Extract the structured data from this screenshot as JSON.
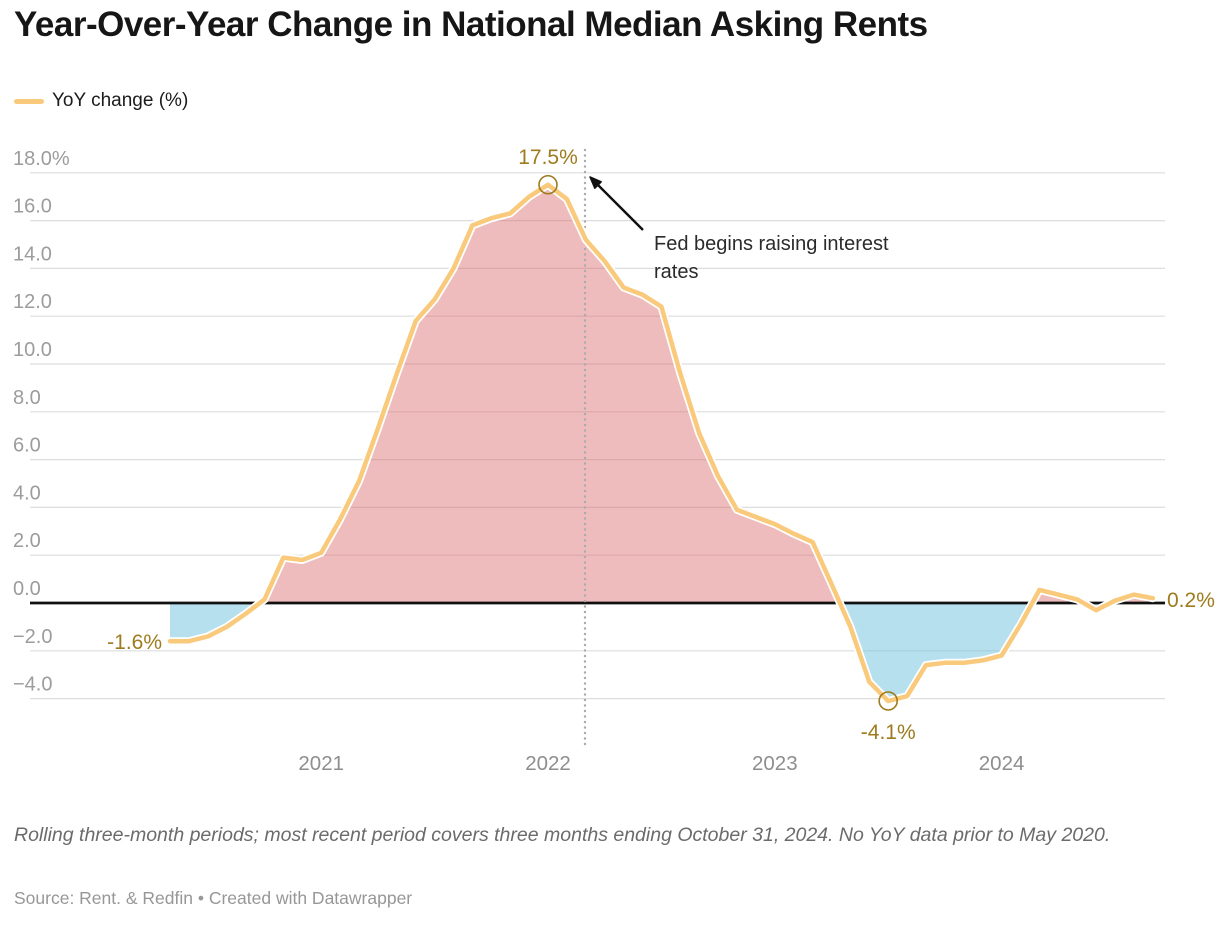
{
  "header": {
    "title": "Year-Over-Year Change in National Median Asking Rents",
    "legend_label": "YoY change (%)"
  },
  "chart_data": {
    "type": "area",
    "title": "Year-Over-Year Change in National Median Asking Rents",
    "xlabel": "",
    "ylabel": "YoY change (%)",
    "ylim": [
      -5.5,
      19
    ],
    "grid": "horizontal",
    "legend_position": "top-left",
    "series": [
      {
        "name": "YoY change (%)",
        "unit": "%",
        "x_start_month": "May 2020",
        "x_end_month": "Oct 2024",
        "monthly_values": [
          -1.6,
          -1.6,
          -1.4,
          -1.0,
          -0.45,
          0.15,
          1.9,
          1.8,
          2.1,
          3.5,
          5.1,
          7.3,
          9.6,
          11.8,
          12.7,
          14.0,
          15.8,
          16.1,
          16.3,
          17.0,
          17.5,
          16.9,
          15.2,
          14.3,
          13.2,
          12.9,
          12.4,
          9.6,
          7.1,
          5.3,
          3.9,
          3.6,
          3.3,
          2.9,
          2.55,
          0.8,
          -1.0,
          -3.3,
          -4.1,
          -3.9,
          -2.6,
          -2.5,
          -2.5,
          -2.4,
          -2.2,
          -0.9,
          0.55,
          0.35,
          0.15,
          -0.3,
          0.1,
          0.35,
          0.2
        ]
      }
    ],
    "y_ticks": [
      {
        "label": "18.0%",
        "value": 18
      },
      {
        "label": "16.0",
        "value": 16
      },
      {
        "label": "14.0",
        "value": 14
      },
      {
        "label": "12.0",
        "value": 12
      },
      {
        "label": "10.0",
        "value": 10
      },
      {
        "label": "8.0",
        "value": 8
      },
      {
        "label": "6.0",
        "value": 6
      },
      {
        "label": "4.0",
        "value": 4
      },
      {
        "label": "2.0",
        "value": 2
      },
      {
        "label": "0.0",
        "value": 0
      },
      {
        "label": "−2.0",
        "value": -2
      },
      {
        "label": "−4.0",
        "value": -4
      }
    ],
    "x_ticks": [
      {
        "label": "2021",
        "month_index": 8
      },
      {
        "label": "2022",
        "month_index": 20
      },
      {
        "label": "2023",
        "month_index": 32
      },
      {
        "label": "2024",
        "month_index": 44
      }
    ],
    "annotations": {
      "start_value": {
        "label": "-1.6%",
        "month_index": 0
      },
      "peak_value": {
        "label": "17.5%",
        "month_index": 20,
        "marker": "open-circle"
      },
      "trough_value": {
        "label": "-4.1%",
        "month_index": 38,
        "marker": "open-circle"
      },
      "end_value": {
        "label": "0.2%",
        "month_index": 52
      },
      "fed_note": {
        "lines": [
          "Fed begins raising interest",
          "rates"
        ],
        "event_date_line": "March 2022"
      }
    },
    "colors": {
      "line": "#F9C97C",
      "line_casing": "#FFFFFF",
      "area_positive": "#D96062",
      "area_positive_opacity": 0.42,
      "area_negative": "#6FC1DF",
      "area_negative_opacity": 0.5,
      "annotation_text": "#9D7B1E",
      "grid": "#DEDEDE",
      "zero_line": "#111111",
      "dotted_line": "#ABABAB",
      "arrow": "#111111"
    }
  },
  "footer": {
    "note": "Rolling three-month periods; most recent period covers three months ending October 31, 2024. No YoY data prior to May 2020.",
    "source": "Source: Rent. & Redfin • Created with Datawrapper"
  }
}
